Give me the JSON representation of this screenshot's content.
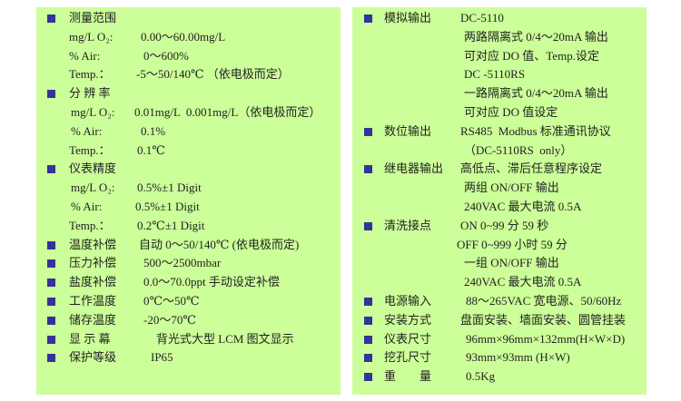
{
  "colors": {
    "panel_bg": "#ccff99",
    "bullet": "#333399",
    "text": "#222222"
  },
  "left_panel": {
    "rows": [
      {
        "bullet": true,
        "label": "测量范围",
        "value": ""
      },
      {
        "bullet": false,
        "label": "mg/L O₂:",
        "value": "0.00～60.00mg/L"
      },
      {
        "bullet": false,
        "label": "% Air:",
        "value": "0～600%"
      },
      {
        "bullet": false,
        "label": "Temp.：",
        "value": "-5～50/140℃ （依电极而定）"
      },
      {
        "bullet": true,
        "label": "分 辨 率",
        "value": ""
      },
      {
        "bullet": false,
        "label": "mg/L O₂:",
        "value": "0.01mg/L  0.001mg/L（依电极而定）"
      },
      {
        "bullet": false,
        "label": "% Air:",
        "value": "0.1%"
      },
      {
        "bullet": false,
        "label": "Temp.：",
        "value": "0.1℃"
      },
      {
        "bullet": true,
        "label": "仪表精度",
        "value": ""
      },
      {
        "bullet": false,
        "label": "mg/L O₂:",
        "value": "0.5%±1 Digit"
      },
      {
        "bullet": false,
        "label": "% Air:",
        "value": "0.5%±1 Digit"
      },
      {
        "bullet": false,
        "label": "Temp.：",
        "value": "0.2℃±1 Digit"
      },
      {
        "bullet": true,
        "label": "温度补偿",
        "value": "自动 0～50/140℃ (依电极而定)"
      },
      {
        "bullet": true,
        "label": "压力补偿",
        "value": "500～2500mbar"
      },
      {
        "bullet": true,
        "label": "盐度补偿",
        "value": "0.0～70.0ppt 手动设定补偿"
      },
      {
        "bullet": true,
        "label": "工作温度",
        "value": "0℃～50℃"
      },
      {
        "bullet": true,
        "label": "储存温度",
        "value": "-20～70℃"
      },
      {
        "bullet": true,
        "label": "显 示 幕",
        "value": "背光式大型 LCM 图文显示"
      },
      {
        "bullet": true,
        "label": "保护等级",
        "value": "IP65"
      }
    ]
  },
  "right_panel": {
    "rows": [
      {
        "bullet": true,
        "label": "模拟输出",
        "value": "DC-5110"
      },
      {
        "bullet": false,
        "label": "",
        "value": "两路隔离式 0/4～20mA 输出"
      },
      {
        "bullet": false,
        "label": "",
        "value": "可对应 DO 值、Temp.设定"
      },
      {
        "bullet": false,
        "label": "",
        "value": "DC -5110RS"
      },
      {
        "bullet": false,
        "label": "",
        "value": "一路隔离式 0/4～20mA 输出"
      },
      {
        "bullet": false,
        "label": "",
        "value": "可对应 DO 值设定"
      },
      {
        "bullet": true,
        "label": "数位输出",
        "value": "RS485  Modbus 标准通讯协议"
      },
      {
        "bullet": false,
        "label": "",
        "value": "（DC-5110RS  only）"
      },
      {
        "bullet": true,
        "label": "继电器输出",
        "value": "高低点、滞后任意程序设定"
      },
      {
        "bullet": false,
        "label": "",
        "value": "两组 ON/OFF 输出"
      },
      {
        "bullet": false,
        "label": "",
        "value": "240VAC 最大电流 0.5A"
      },
      {
        "bullet": true,
        "label": "清洗接点",
        "value": "ON 0~99 分 59 秒"
      },
      {
        "bullet": false,
        "label": "",
        "value": "OFF 0~999 小时 59 分"
      },
      {
        "bullet": false,
        "label": "",
        "value": "一组 ON/OFF 输出"
      },
      {
        "bullet": false,
        "label": "",
        "value": "240VAC 最大电流 0.5A"
      },
      {
        "bullet": true,
        "label": "电源输入",
        "value": "88～265VAC 宽电源、50/60Hz"
      },
      {
        "bullet": true,
        "label": "安装方式",
        "value": "盘面安装、墙面安装、圆管挂装"
      },
      {
        "bullet": true,
        "label": "仪表尺寸",
        "value": "96mm×96mm×132mm(H×W×D)"
      },
      {
        "bullet": true,
        "label": "挖孔尺寸",
        "value": "93mm×93mm (H×W)"
      },
      {
        "bullet": true,
        "label": "重　　量",
        "value": "0.5Kg"
      }
    ]
  }
}
